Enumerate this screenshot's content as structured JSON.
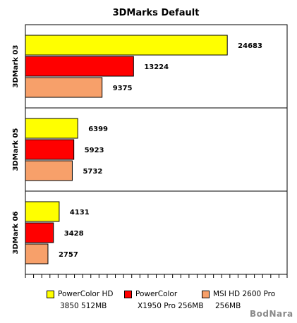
{
  "chart_data": {
    "type": "bar",
    "orientation": "horizontal",
    "title": "3DMarks Default",
    "categories": [
      "3DMark 03",
      "3DMark 05",
      "3DMark 06"
    ],
    "series": [
      {
        "name": "PowerColor HD 3850 512MB",
        "legend_line1": "PowerColor HD",
        "legend_line2": "3850 512MB",
        "color": "#ffff00",
        "values": [
          24683,
          6399,
          4131
        ]
      },
      {
        "name": "PowerColor X1950 Pro 256MB",
        "legend_line1": "PowerColor",
        "legend_line2": "X1950 Pro 256MB",
        "color": "#ff0000",
        "values": [
          13224,
          5923,
          3428
        ]
      },
      {
        "name": "MSI HD 2600 Pro 256MB",
        "legend_line1": "MSI HD 2600 Pro",
        "legend_line2": "256MB",
        "color": "#f7a06a",
        "values": [
          9375,
          5732,
          2757
        ]
      }
    ],
    "xlim": [
      0,
      32000
    ],
    "grid": false,
    "legend_position": "bottom"
  },
  "watermark": "BodNara"
}
